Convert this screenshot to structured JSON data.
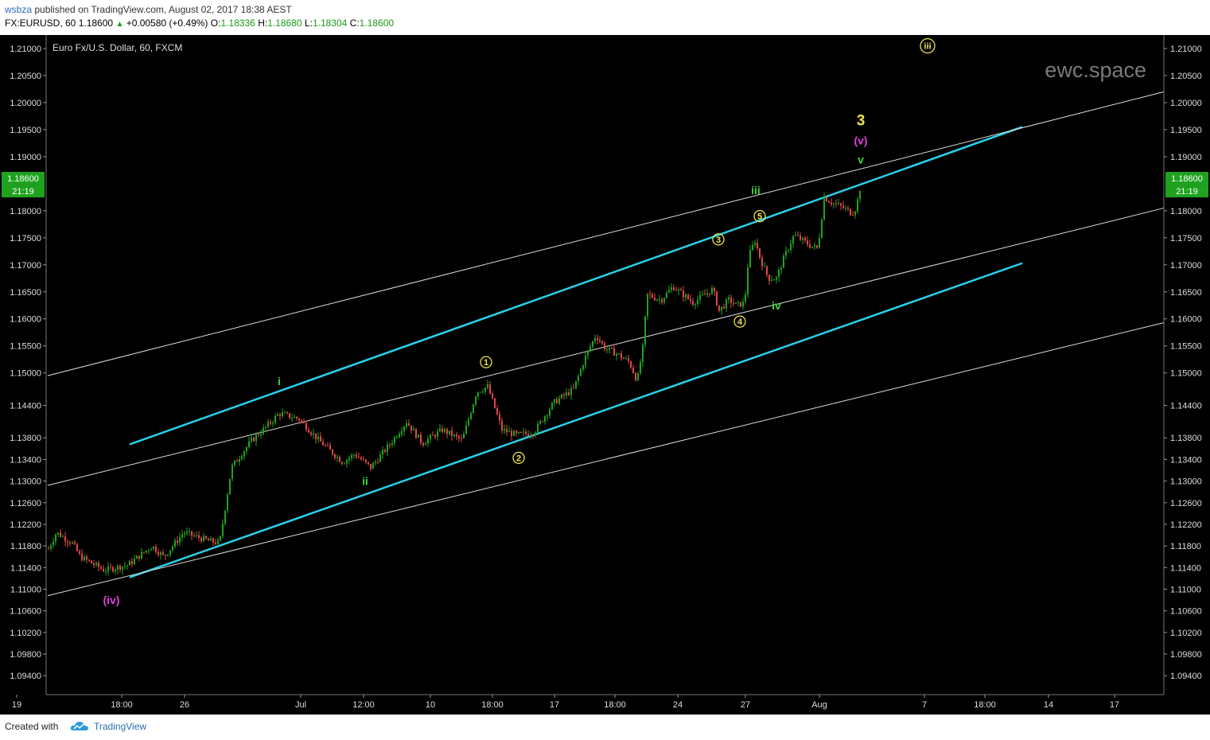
{
  "header": {
    "user": "wsbza",
    "published": "published on TradingView.com, August 02, 2017 18:38 AEST",
    "symbol": "FX:EURUSD, 60",
    "last": "1.18600",
    "change": "+0.00580 (+0.49%)",
    "o_label": "O:",
    "o_val": "1.18336",
    "h_label": "H:",
    "h_val": "1.18680",
    "l_label": "L:",
    "l_val": "1.18304",
    "c_label": "C:",
    "c_val": "1.18600"
  },
  "footer": {
    "created_with": "Created with",
    "brand": "TradingView"
  },
  "chart_data": {
    "type": "candlestick",
    "title": "Euro Fx/U.S. Dollar, 60, FXCM",
    "watermark": "ewc.space",
    "last_price_label": "1.18600",
    "countdown_label": "21:19",
    "ylim": [
      1.0905,
      1.2125
    ],
    "y_ticks": [
      "1.21000",
      "1.20500",
      "1.20000",
      "1.19500",
      "1.19000",
      "1.18000",
      "1.17500",
      "1.17000",
      "1.16500",
      "1.16000",
      "1.15500",
      "1.15000",
      "1.14400",
      "1.13800",
      "1.13400",
      "1.13000",
      "1.12600",
      "1.12200",
      "1.11800",
      "1.11400",
      "1.11000",
      "1.10600",
      "1.10200",
      "1.09800",
      "1.09400"
    ],
    "x_ticks": [
      "19",
      "18:00",
      "26",
      "Jul",
      "12:00",
      "10",
      "18:00",
      "17",
      "18:00",
      "24",
      "27",
      "Aug",
      "7",
      "18:00",
      "14",
      "17"
    ],
    "x_tick_index": [
      21,
      153,
      232,
      378,
      457,
      541,
      619,
      697,
      773,
      852,
      937,
      1030,
      1162,
      1238,
      1318,
      1401
    ],
    "price_path_x": [
      60,
      70,
      90,
      100,
      130,
      160,
      190,
      205,
      230,
      260,
      275,
      290,
      315,
      330,
      350,
      375,
      400,
      415,
      430,
      445,
      465,
      490,
      510,
      530,
      555,
      580,
      598,
      612,
      630,
      648,
      670,
      695,
      720,
      735,
      748,
      760,
      775,
      790,
      800,
      808,
      812,
      830,
      845,
      870,
      895,
      903,
      915,
      925,
      935,
      940,
      948,
      955,
      965,
      975,
      985,
      997,
      1008,
      1018,
      1027,
      1035,
      1045,
      1060,
      1070,
      1075,
      1082
    ],
    "price_path_y": [
      1.1175,
      1.1205,
      1.1185,
      1.116,
      1.1135,
      1.1145,
      1.118,
      1.116,
      1.1205,
      1.119,
      1.1185,
      1.1325,
      1.1375,
      1.1395,
      1.1425,
      1.1415,
      1.1375,
      1.1355,
      1.1335,
      1.135,
      1.1325,
      1.137,
      1.141,
      1.137,
      1.1395,
      1.1375,
      1.1465,
      1.1475,
      1.1395,
      1.1385,
      1.139,
      1.1445,
      1.147,
      1.153,
      1.157,
      1.1545,
      1.1535,
      1.152,
      1.1485,
      1.1555,
      1.1645,
      1.1635,
      1.166,
      1.163,
      1.1655,
      1.1615,
      1.1635,
      1.1625,
      1.163,
      1.1715,
      1.1745,
      1.171,
      1.1675,
      1.1675,
      1.1715,
      1.1755,
      1.1745,
      1.1735,
      1.173,
      1.1825,
      1.1815,
      1.1805,
      1.1795,
      1.1805,
      1.1855
    ],
    "wave_labels": [
      {
        "text": "(iv)",
        "color": "#e040e0",
        "x": 140,
        "y": 1.108
      },
      {
        "text": "i",
        "color": "#39d639",
        "x": 351,
        "y": 1.1485
      },
      {
        "text": "ii",
        "color": "#39d639",
        "x": 459,
        "y": 1.13
      },
      {
        "text": "1",
        "color": "#f0e64a",
        "circled": true,
        "x": 611,
        "y": 1.152
      },
      {
        "text": "2",
        "color": "#f0e64a",
        "circled": true,
        "x": 652,
        "y": 1.1343
      },
      {
        "text": "3",
        "color": "#f0e64a",
        "circled": true,
        "x": 903,
        "y": 1.1747
      },
      {
        "text": "4",
        "color": "#f0e64a",
        "circled": true,
        "x": 930,
        "y": 1.1595
      },
      {
        "text": "5",
        "color": "#f0e64a",
        "circled": true,
        "x": 955,
        "y": 1.179
      },
      {
        "text": "iii",
        "color": "#39d639",
        "x": 950,
        "y": 1.1838
      },
      {
        "text": "iv",
        "color": "#39d639",
        "x": 976,
        "y": 1.1625
      },
      {
        "text": "v",
        "color": "#39d639",
        "x": 1082,
        "y": 1.1895
      },
      {
        "text": "(v)",
        "color": "#e040e0",
        "x": 1082,
        "y": 1.193
      },
      {
        "text": "3",
        "color": "#f0e64a",
        "x": 1082,
        "y": 1.1965
      },
      {
        "text": "iii",
        "color": "#f0e64a",
        "circled": true,
        "x": 1166,
        "y": 1.2105
      }
    ],
    "trend_lines": [
      {
        "color": "#29d0e8",
        "from": [
          163,
          1.1368
        ],
        "to": [
          1285,
          1.1955
        ]
      },
      {
        "color": "#29d0e8",
        "from": [
          163,
          1.1122
        ],
        "to": [
          1285,
          1.1703
        ]
      },
      {
        "color": "#dddddd",
        "from": [
          60,
          1.1495
        ],
        "to": [
          1463,
          1.202
        ]
      },
      {
        "color": "#dddddd",
        "from": [
          60,
          1.1292
        ],
        "to": [
          1463,
          1.1805
        ]
      },
      {
        "color": "#dddddd",
        "from": [
          60,
          1.1088
        ],
        "to": [
          1463,
          1.1593
        ]
      }
    ],
    "colors": {
      "background": "#000000",
      "up": "#1fa31f",
      "down": "#e04848",
      "axis_text": "#dddddd"
    }
  }
}
